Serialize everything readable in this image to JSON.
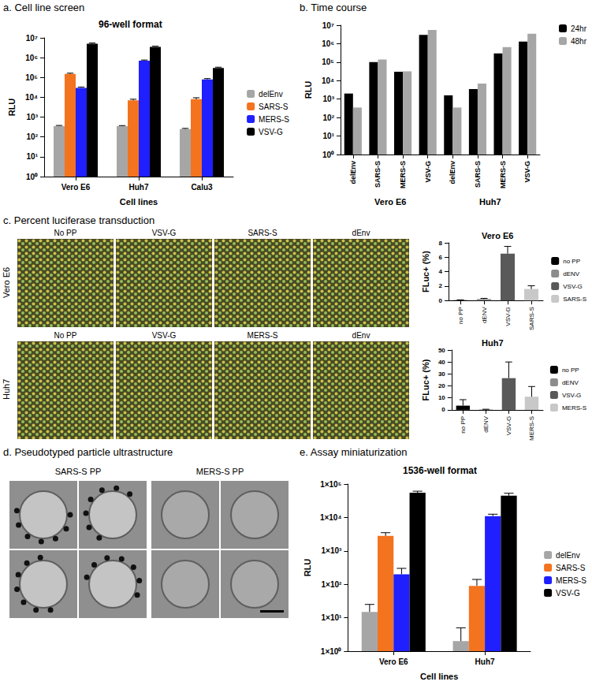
{
  "chart_data": [
    {
      "type": "bar",
      "heading": "a. Cell line screen",
      "title": "96-well format",
      "x_label": "Cell lines",
      "y_label": "RLU",
      "categories": [
        "Vero E6",
        "Huh7",
        "Calu3"
      ],
      "series": [
        {
          "name": "delEnv",
          "color": "#a6a6a6",
          "values": [
            350,
            350,
            250
          ],
          "errors": [
            30,
            25,
            20
          ]
        },
        {
          "name": "SARS-S",
          "color": "#f4731f",
          "values": [
            150000,
            7000,
            8000
          ],
          "errors": [
            15000,
            1000,
            1500
          ]
        },
        {
          "name": "MERS-S",
          "color": "#1f1fff",
          "values": [
            30000,
            700000,
            80000
          ],
          "errors": [
            3000,
            60000,
            8000
          ]
        },
        {
          "name": "VSV-G",
          "color": "#000000",
          "values": [
            5000000,
            3500000,
            300000
          ],
          "errors": [
            500000,
            300000,
            30000
          ]
        }
      ],
      "ylim": [
        1,
        10000000
      ],
      "yticks": [
        {
          "value": 1,
          "label": "10⁰"
        },
        {
          "value": 10,
          "label": "10¹"
        },
        {
          "value": 100,
          "label": "10²"
        },
        {
          "value": 1000,
          "label": "10³"
        },
        {
          "value": 10000,
          "label": "10⁴"
        },
        {
          "value": 100000,
          "label": "10⁵"
        },
        {
          "value": 1000000,
          "label": "10⁶"
        },
        {
          "value": 10000000,
          "label": "10⁷"
        }
      ],
      "log": "y",
      "grid": false,
      "legend": "right"
    },
    {
      "type": "bar",
      "heading": "b. Time course",
      "y_label": "RLU",
      "categories": [
        "delEnv",
        "SARS-S",
        "MERS-S",
        "VSV-G",
        "delEnv",
        "SARS-S",
        "MERS-S",
        "VSV-G"
      ],
      "category_groups": [
        "Vero E6",
        "Huh7"
      ],
      "series": [
        {
          "name": "24hr",
          "color": "#000000",
          "values": [
            2000,
            100000,
            30000,
            3000000,
            1600,
            3500,
            300000,
            1300000
          ]
        },
        {
          "name": "48hr",
          "color": "#a6a6a6",
          "values": [
            350,
            140000,
            32000,
            5500000,
            350,
            7000,
            650000,
            3500000
          ]
        }
      ],
      "ylim": [
        1,
        10000000
      ],
      "yticks": [
        {
          "value": 1,
          "label": "10⁰"
        },
        {
          "value": 10,
          "label": "10¹"
        },
        {
          "value": 100,
          "label": "10²"
        },
        {
          "value": 1000,
          "label": "10³"
        },
        {
          "value": 10000,
          "label": "10⁴"
        },
        {
          "value": 100000,
          "label": "10⁵"
        },
        {
          "value": 1000000,
          "label": "10⁶"
        },
        {
          "value": 10000000,
          "label": "10⁷"
        }
      ],
      "log": "y",
      "grid": false,
      "legend": "top-right"
    },
    {
      "type": "bar",
      "title": "Vero E6",
      "y_label": "FLuc+ (%)",
      "categories": [
        "no PP",
        "dENV",
        "VSV-G",
        "SARS-S"
      ],
      "values": [
        0.05,
        0.2,
        6.5,
        1.6
      ],
      "errors": [
        0.05,
        0.1,
        1.0,
        0.45
      ],
      "colors": [
        "#000000",
        "#8c8c8c",
        "#595959",
        "#c8c8c8"
      ],
      "ylim": [
        0,
        8
      ],
      "yticks": [
        0,
        2,
        4,
        6,
        8
      ],
      "grid": false,
      "legend": "right"
    },
    {
      "type": "bar",
      "title": "Huh7",
      "y_label": "FLuc+ (%)",
      "categories": [
        "no PP",
        "dENV",
        "VSV-G",
        "MERS-S"
      ],
      "values": [
        3.5,
        0.3,
        26.5,
        11
      ],
      "errors": [
        5,
        0.2,
        13.5,
        8.5
      ],
      "colors": [
        "#000000",
        "#8c8c8c",
        "#595959",
        "#c8c8c8"
      ],
      "ylim": [
        0,
        50
      ],
      "yticks": [
        0,
        10,
        20,
        30,
        40,
        50
      ],
      "grid": false,
      "legend": "right"
    },
    {
      "type": "bar",
      "heading": "e. Assay miniaturization",
      "title": "1536-well format",
      "x_label": "Cell lines",
      "y_label": "RLU",
      "categories": [
        "Vero E6",
        "Huh7"
      ],
      "series": [
        {
          "name": "delEnv",
          "color": "#a6a6a6",
          "values": [
            15,
            2
          ],
          "errors": [
            10,
            3
          ]
        },
        {
          "name": "SARS-S",
          "color": "#f4731f",
          "values": [
            2800,
            90
          ],
          "errors": [
            700,
            50
          ]
        },
        {
          "name": "MERS-S",
          "color": "#1f1fff",
          "values": [
            200,
            11000
          ],
          "errors": [
            100,
            1500
          ]
        },
        {
          "name": "VSV-G",
          "color": "#000000",
          "values": [
            55000,
            45000
          ],
          "errors": [
            6000,
            8000
          ]
        }
      ],
      "ylim": [
        1,
        100000
      ],
      "yticks": [
        {
          "value": 1,
          "label": "1×10⁰"
        },
        {
          "value": 10,
          "label": "1×10¹"
        },
        {
          "value": 100,
          "label": "1×10²"
        },
        {
          "value": 1000,
          "label": "1×10³"
        },
        {
          "value": 10000,
          "label": "1×10⁴"
        },
        {
          "value": 100000,
          "label": "1×10⁵"
        }
      ],
      "log": "y",
      "grid": false,
      "legend": "right"
    }
  ],
  "transduction_images": {
    "heading": "c. Percent luciferase transduction",
    "rows": [
      {
        "label": "Vero E6",
        "images": [
          "No PP",
          "VSV-G",
          "SARS-S",
          "dEnv"
        ]
      },
      {
        "label": "Huh7",
        "images": [
          "No PP",
          "VSV-G",
          "MERS-S",
          "dEnv"
        ]
      }
    ]
  },
  "micrographs": {
    "heading": "d. Pseudotyped particle ultrastructure",
    "groups": [
      "SARS-S PP",
      "MERS-S PP"
    ]
  }
}
